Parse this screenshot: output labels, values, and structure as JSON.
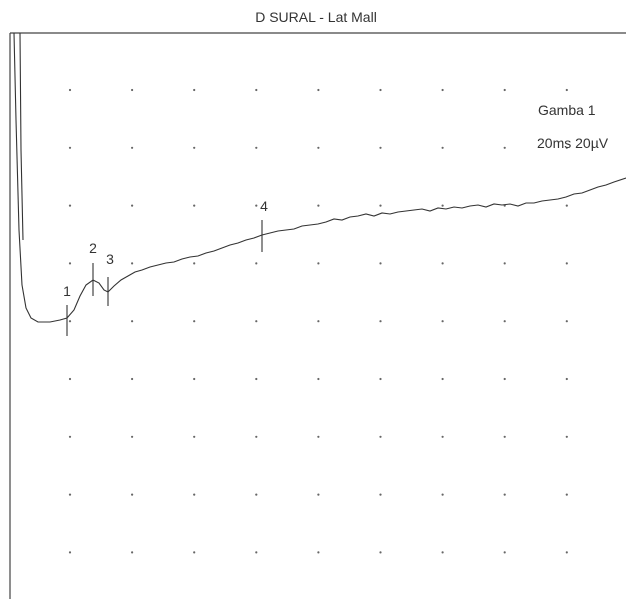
{
  "header": {
    "title": "D SURAL - Lat Mall"
  },
  "settings": {
    "channel": "Gamba 1",
    "scale": "20ms 20µV"
  },
  "markers": [
    "1",
    "2",
    "3",
    "4"
  ]
}
